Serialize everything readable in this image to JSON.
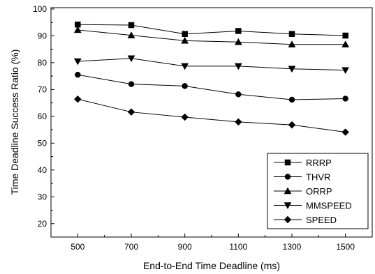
{
  "chart_data": {
    "type": "line",
    "title": "",
    "xlabel": "End-to-End Time Deadline (ms)",
    "ylabel": "Time Deadline Success Ratio (%)",
    "x": [
      500,
      700,
      900,
      1100,
      1300,
      1500
    ],
    "x_ticks": [
      "500",
      "700",
      "900",
      "1100",
      "1300",
      "1500"
    ],
    "y_ticks": [
      "20",
      "30",
      "40",
      "50",
      "60",
      "70",
      "80",
      "90",
      "100"
    ],
    "xlim": [
      400,
      1600
    ],
    "ylim": [
      15,
      100.5
    ],
    "grid": false,
    "legend_position": "bottom-right",
    "series_color": "#000000",
    "series": [
      {
        "name": "RRRP",
        "marker": "square",
        "values": [
          94.2,
          94.0,
          90.7,
          91.8,
          90.7,
          90.1
        ]
      },
      {
        "name": "THVR",
        "marker": "circle",
        "values": [
          75.5,
          72.0,
          71.3,
          68.2,
          66.2,
          66.6
        ]
      },
      {
        "name": "ORRP",
        "marker": "triangle-up",
        "values": [
          92.2,
          90.2,
          88.2,
          87.7,
          86.8,
          86.8
        ]
      },
      {
        "name": "MMSPEED",
        "marker": "triangle-down",
        "values": [
          80.5,
          81.6,
          78.7,
          78.7,
          77.7,
          77.2
        ]
      },
      {
        "name": "SPEED",
        "marker": "diamond",
        "values": [
          66.4,
          61.6,
          59.7,
          57.9,
          56.8,
          54.1
        ]
      }
    ]
  }
}
